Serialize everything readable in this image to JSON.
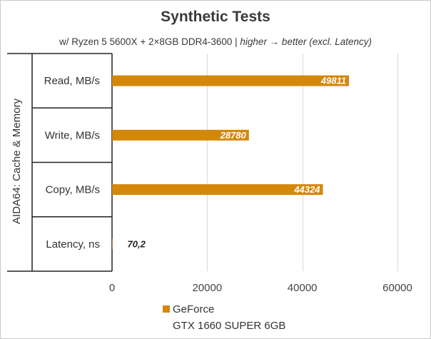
{
  "chart_data": {
    "type": "bar",
    "orientation": "horizontal",
    "title": "Synthetic Tests",
    "subtitle": {
      "normal": "w/ Ryzen 5 5600X + 2×8GB DDR4-3600 | ",
      "italic": "higher → better (excl. Latency)"
    },
    "group_label": "AIDA64: Cache & Memory",
    "categories": [
      "Read, MB/s",
      "Write, MB/s",
      "Copy, MB/s",
      "Latency, ns"
    ],
    "series": [
      {
        "name": "GeForce GTX 1660 SUPER 6GB",
        "legend_lines": [
          "GeForce",
          "GTX 1660 SUPER 6GB"
        ],
        "color": "#d4880a",
        "values": [
          49811,
          28780,
          44324,
          70.2
        ],
        "data_labels": [
          "49811",
          "28780",
          "44324",
          "70,2"
        ]
      }
    ],
    "xlim": [
      0,
      60000
    ],
    "xticks": [
      0,
      20000,
      40000,
      60000
    ],
    "xtick_labels": [
      "0",
      "20000",
      "40000",
      "60000"
    ],
    "grid": true,
    "legend_position": "bottom"
  }
}
